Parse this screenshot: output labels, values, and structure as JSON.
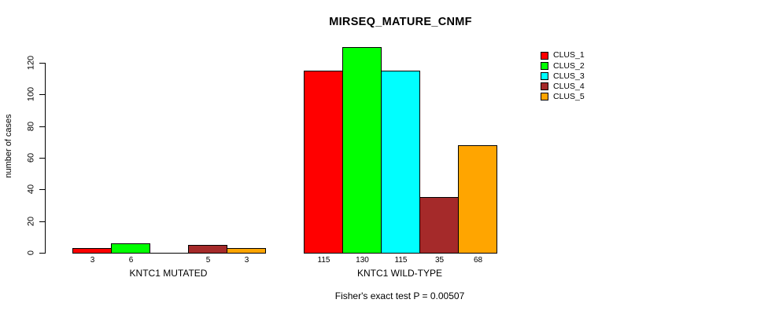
{
  "chart_data": {
    "type": "bar",
    "title": "MIRSEQ_MATURE_CNMF",
    "ylabel": "number of cases",
    "ylim": [
      0,
      120
    ],
    "yticks": [
      0,
      20,
      40,
      60,
      80,
      100,
      120
    ],
    "grid": false,
    "legend_position": "right",
    "categories": [
      "KNTC1 MUTATED",
      "KNTC1 WILD-TYPE"
    ],
    "series": [
      {
        "name": "CLUS_1",
        "color": "#FF0000",
        "values": [
          3,
          115
        ]
      },
      {
        "name": "CLUS_2",
        "color": "#00FF00",
        "values": [
          6,
          130
        ]
      },
      {
        "name": "CLUS_3",
        "color": "#00FFFF",
        "values": [
          0,
          115
        ]
      },
      {
        "name": "CLUS_4",
        "color": "#A52A2A",
        "values": [
          5,
          35
        ]
      },
      {
        "name": "CLUS_5",
        "color": "#FFA500",
        "values": [
          3,
          68
        ]
      }
    ],
    "bar_value_labels": [
      [
        "3",
        "6",
        "",
        "5",
        "3"
      ],
      [
        "115",
        "130",
        "115",
        "35",
        "68"
      ]
    ],
    "annotation": "Fisher's exact test P = 0.00507"
  }
}
